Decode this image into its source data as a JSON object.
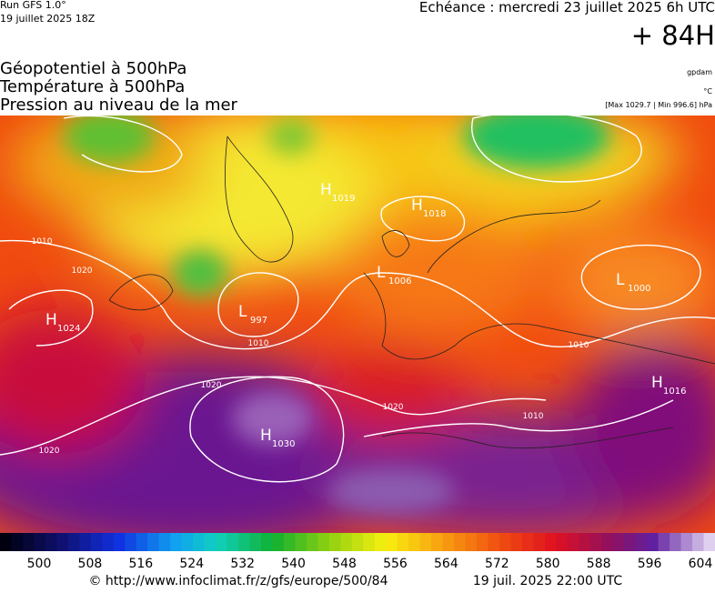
{
  "header": {
    "run": "Run GFS 1.0°",
    "run_date": "19 juillet 2025 18Z",
    "forecast": "Echéance : mercredi 23 juillet 2025 6h UTC",
    "lead": "+ 84H"
  },
  "legend": {
    "fields": [
      "Géopotentiel à 500hPa",
      "Température à 500hPa",
      "Pression au niveau de la mer"
    ],
    "units": [
      "gpdam",
      "°C"
    ],
    "extremes": "[Max 1029.7 | Min 996.6] hPa"
  },
  "centers": [
    {
      "letter": "H",
      "value": 1024
    },
    {
      "letter": "L",
      "value": 997
    },
    {
      "letter": "H",
      "value": 1030
    },
    {
      "letter": "H",
      "value": 1018
    },
    {
      "letter": "L",
      "value": 1006
    },
    {
      "letter": "L",
      "value": 1000
    },
    {
      "letter": "H",
      "value": 1016
    },
    {
      "letter": "H",
      "value": 1019
    }
  ],
  "isobar_labels": [
    1010,
    1020,
    1020,
    1010,
    1020,
    1010,
    1010,
    1020
  ],
  "colorbar": {
    "ticks": [
      500,
      508,
      516,
      524,
      532,
      540,
      548,
      556,
      564,
      572,
      580,
      588,
      596,
      604
    ]
  },
  "footer": {
    "url": "© http://www.infoclimat.fr/z/gfs/europe/500/84",
    "generated": "19 juil. 2025 22:00 UTC"
  }
}
